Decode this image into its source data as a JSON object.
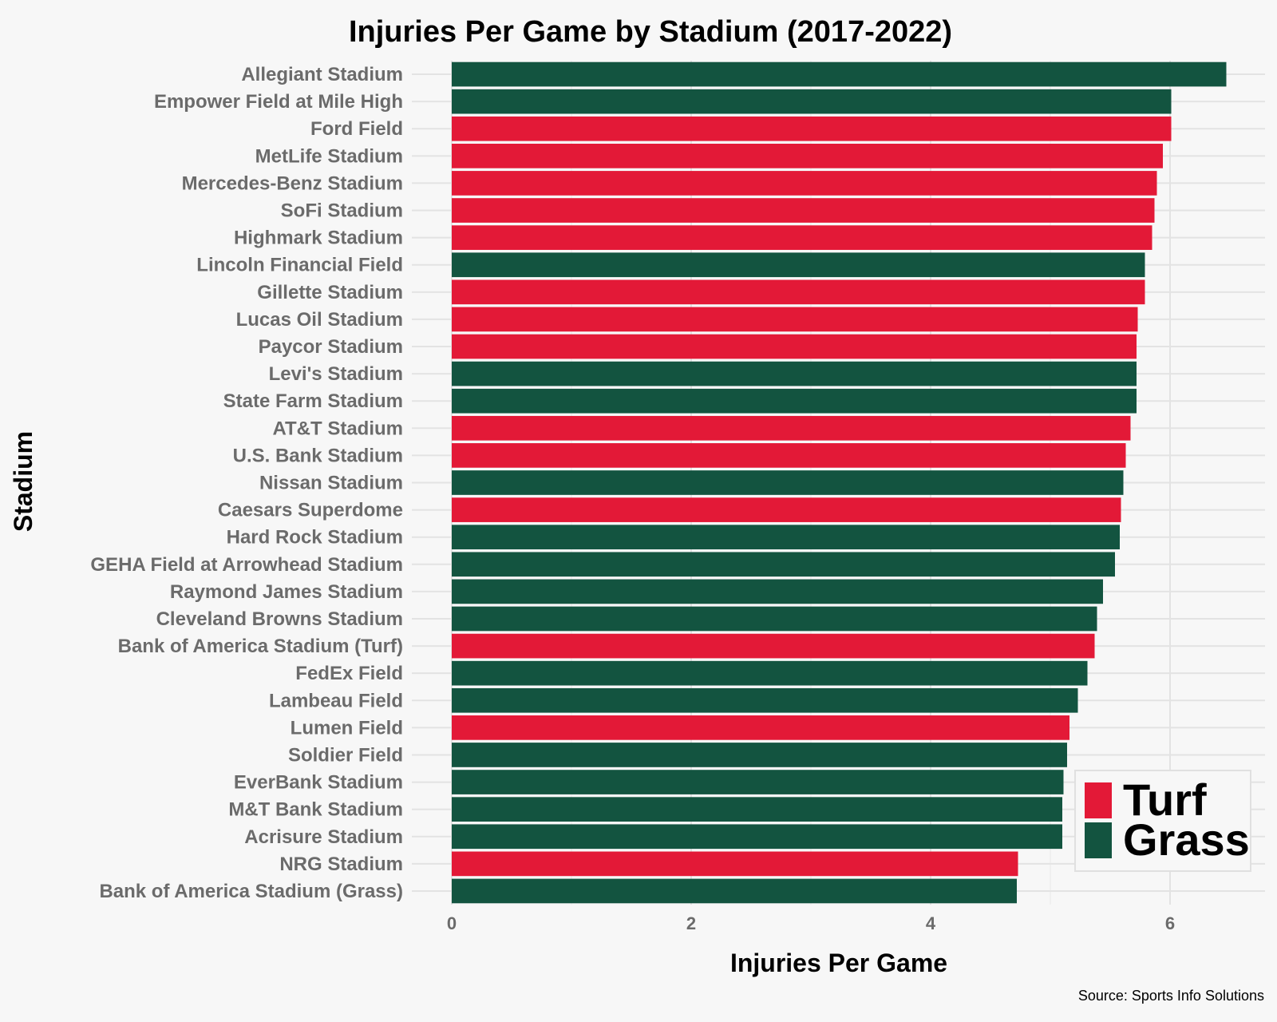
{
  "chart_data": {
    "type": "bar",
    "orientation": "horizontal",
    "title": "Injuries Per Game by Stadium (2017-2022)",
    "xlabel": "Injuries Per Game",
    "ylabel": "Stadium",
    "xlim": [
      0,
      6.8
    ],
    "x_ticks": [
      0,
      2,
      4,
      6
    ],
    "grid": true,
    "legend": {
      "placement": "bottom-right",
      "entries": [
        {
          "label": "Turf",
          "color": "#e31937"
        },
        {
          "label": "Grass",
          "color": "#135440"
        }
      ]
    },
    "source": "Source: Sports Info Solutions",
    "categories": [
      "Allegiant Stadium",
      "Empower Field at Mile High",
      "Ford Field",
      "MetLife Stadium",
      "Mercedes-Benz Stadium",
      "SoFi Stadium",
      "Highmark Stadium",
      "Lincoln Financial Field",
      "Gillette Stadium",
      "Lucas Oil Stadium",
      "Paycor Stadium",
      "Levi's Stadium",
      "State Farm Stadium",
      "AT&T Stadium",
      "U.S. Bank Stadium",
      "Nissan Stadium",
      "Caesars Superdome",
      "Hard Rock Stadium",
      "GEHA Field at Arrowhead Stadium",
      "Raymond James Stadium",
      "Cleveland Browns Stadium",
      "Bank of America Stadium (Turf)",
      "FedEx Field",
      "Lambeau Field",
      "Lumen Field",
      "Soldier Field",
      "EverBank Stadium",
      "M&T Bank Stadium",
      "Acrisure Stadium",
      "NRG Stadium",
      "Bank of America Stadium (Grass)"
    ],
    "values": [
      6.47,
      6.01,
      6.01,
      5.94,
      5.89,
      5.87,
      5.85,
      5.79,
      5.79,
      5.73,
      5.72,
      5.72,
      5.72,
      5.67,
      5.63,
      5.61,
      5.59,
      5.58,
      5.54,
      5.44,
      5.39,
      5.37,
      5.31,
      5.23,
      5.16,
      5.14,
      5.11,
      5.1,
      5.1,
      4.73,
      4.72
    ],
    "surface": [
      "Grass",
      "Grass",
      "Turf",
      "Turf",
      "Turf",
      "Turf",
      "Turf",
      "Grass",
      "Turf",
      "Turf",
      "Turf",
      "Grass",
      "Grass",
      "Turf",
      "Turf",
      "Grass",
      "Turf",
      "Grass",
      "Grass",
      "Grass",
      "Grass",
      "Turf",
      "Grass",
      "Grass",
      "Turf",
      "Grass",
      "Grass",
      "Grass",
      "Grass",
      "Turf",
      "Grass"
    ]
  }
}
